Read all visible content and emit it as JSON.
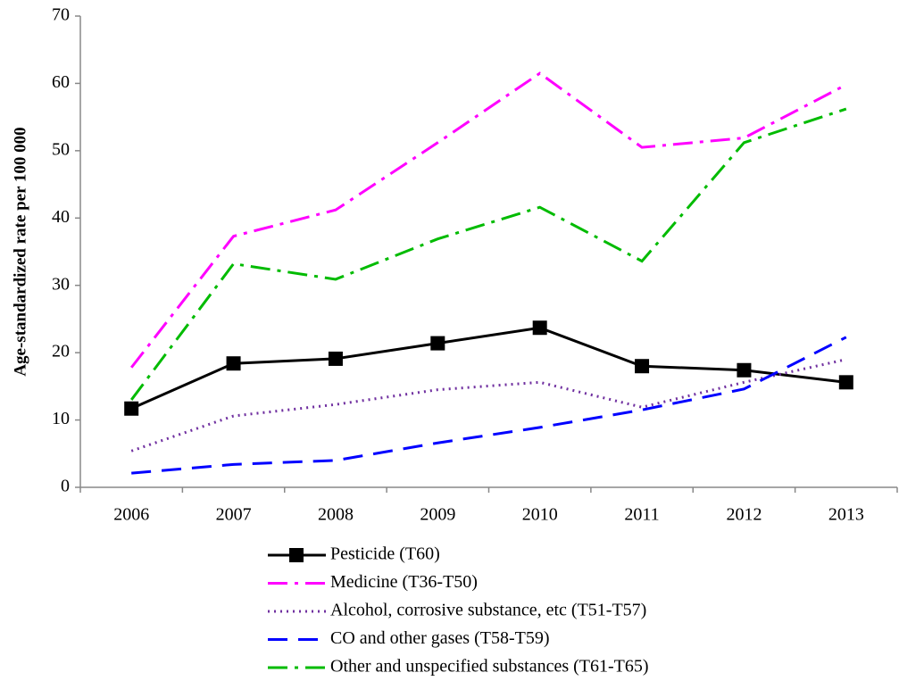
{
  "chart_data": {
    "type": "line",
    "y_label": "Age-standardized rate per 100 000",
    "categories": [
      "2006",
      "2007",
      "2008",
      "2009",
      "2010",
      "2011",
      "2012",
      "2013"
    ],
    "series": [
      {
        "name": "Pesticide (T60)",
        "color": "#000000",
        "style": "solid",
        "marker": "square",
        "values": [
          11.7,
          18.4,
          19.1,
          21.4,
          23.7,
          18.0,
          17.4,
          15.6
        ]
      },
      {
        "name": "Medicine (T36-T50)",
        "color": "#ff00ff",
        "style": "dashdot",
        "values": [
          17.8,
          37.3,
          41.2,
          51.2,
          61.5,
          50.5,
          51.9,
          59.8
        ]
      },
      {
        "name": "Alcohol, corrosive substance, etc (T51-T57)",
        "color": "#7030a0",
        "style": "dotted",
        "values": [
          5.4,
          10.6,
          12.3,
          14.5,
          15.6,
          11.9,
          15.6,
          19.0
        ]
      },
      {
        "name": "CO and other gases (T58-T59)",
        "color": "#0000ff",
        "style": "dashed",
        "values": [
          2.1,
          3.4,
          4.0,
          6.6,
          8.9,
          11.5,
          14.6,
          22.3
        ]
      },
      {
        "name": "Other and unspecified substances (T61-T65)",
        "color": "#00bb00",
        "style": "dashdot",
        "values": [
          13.0,
          33.2,
          30.9,
          36.9,
          41.6,
          33.6,
          51.2,
          56.2
        ]
      }
    ],
    "ylim": [
      0,
      70
    ],
    "yticks": [
      0,
      10,
      20,
      30,
      40,
      50,
      60,
      70
    ],
    "grid": false,
    "legend": "bottom"
  }
}
